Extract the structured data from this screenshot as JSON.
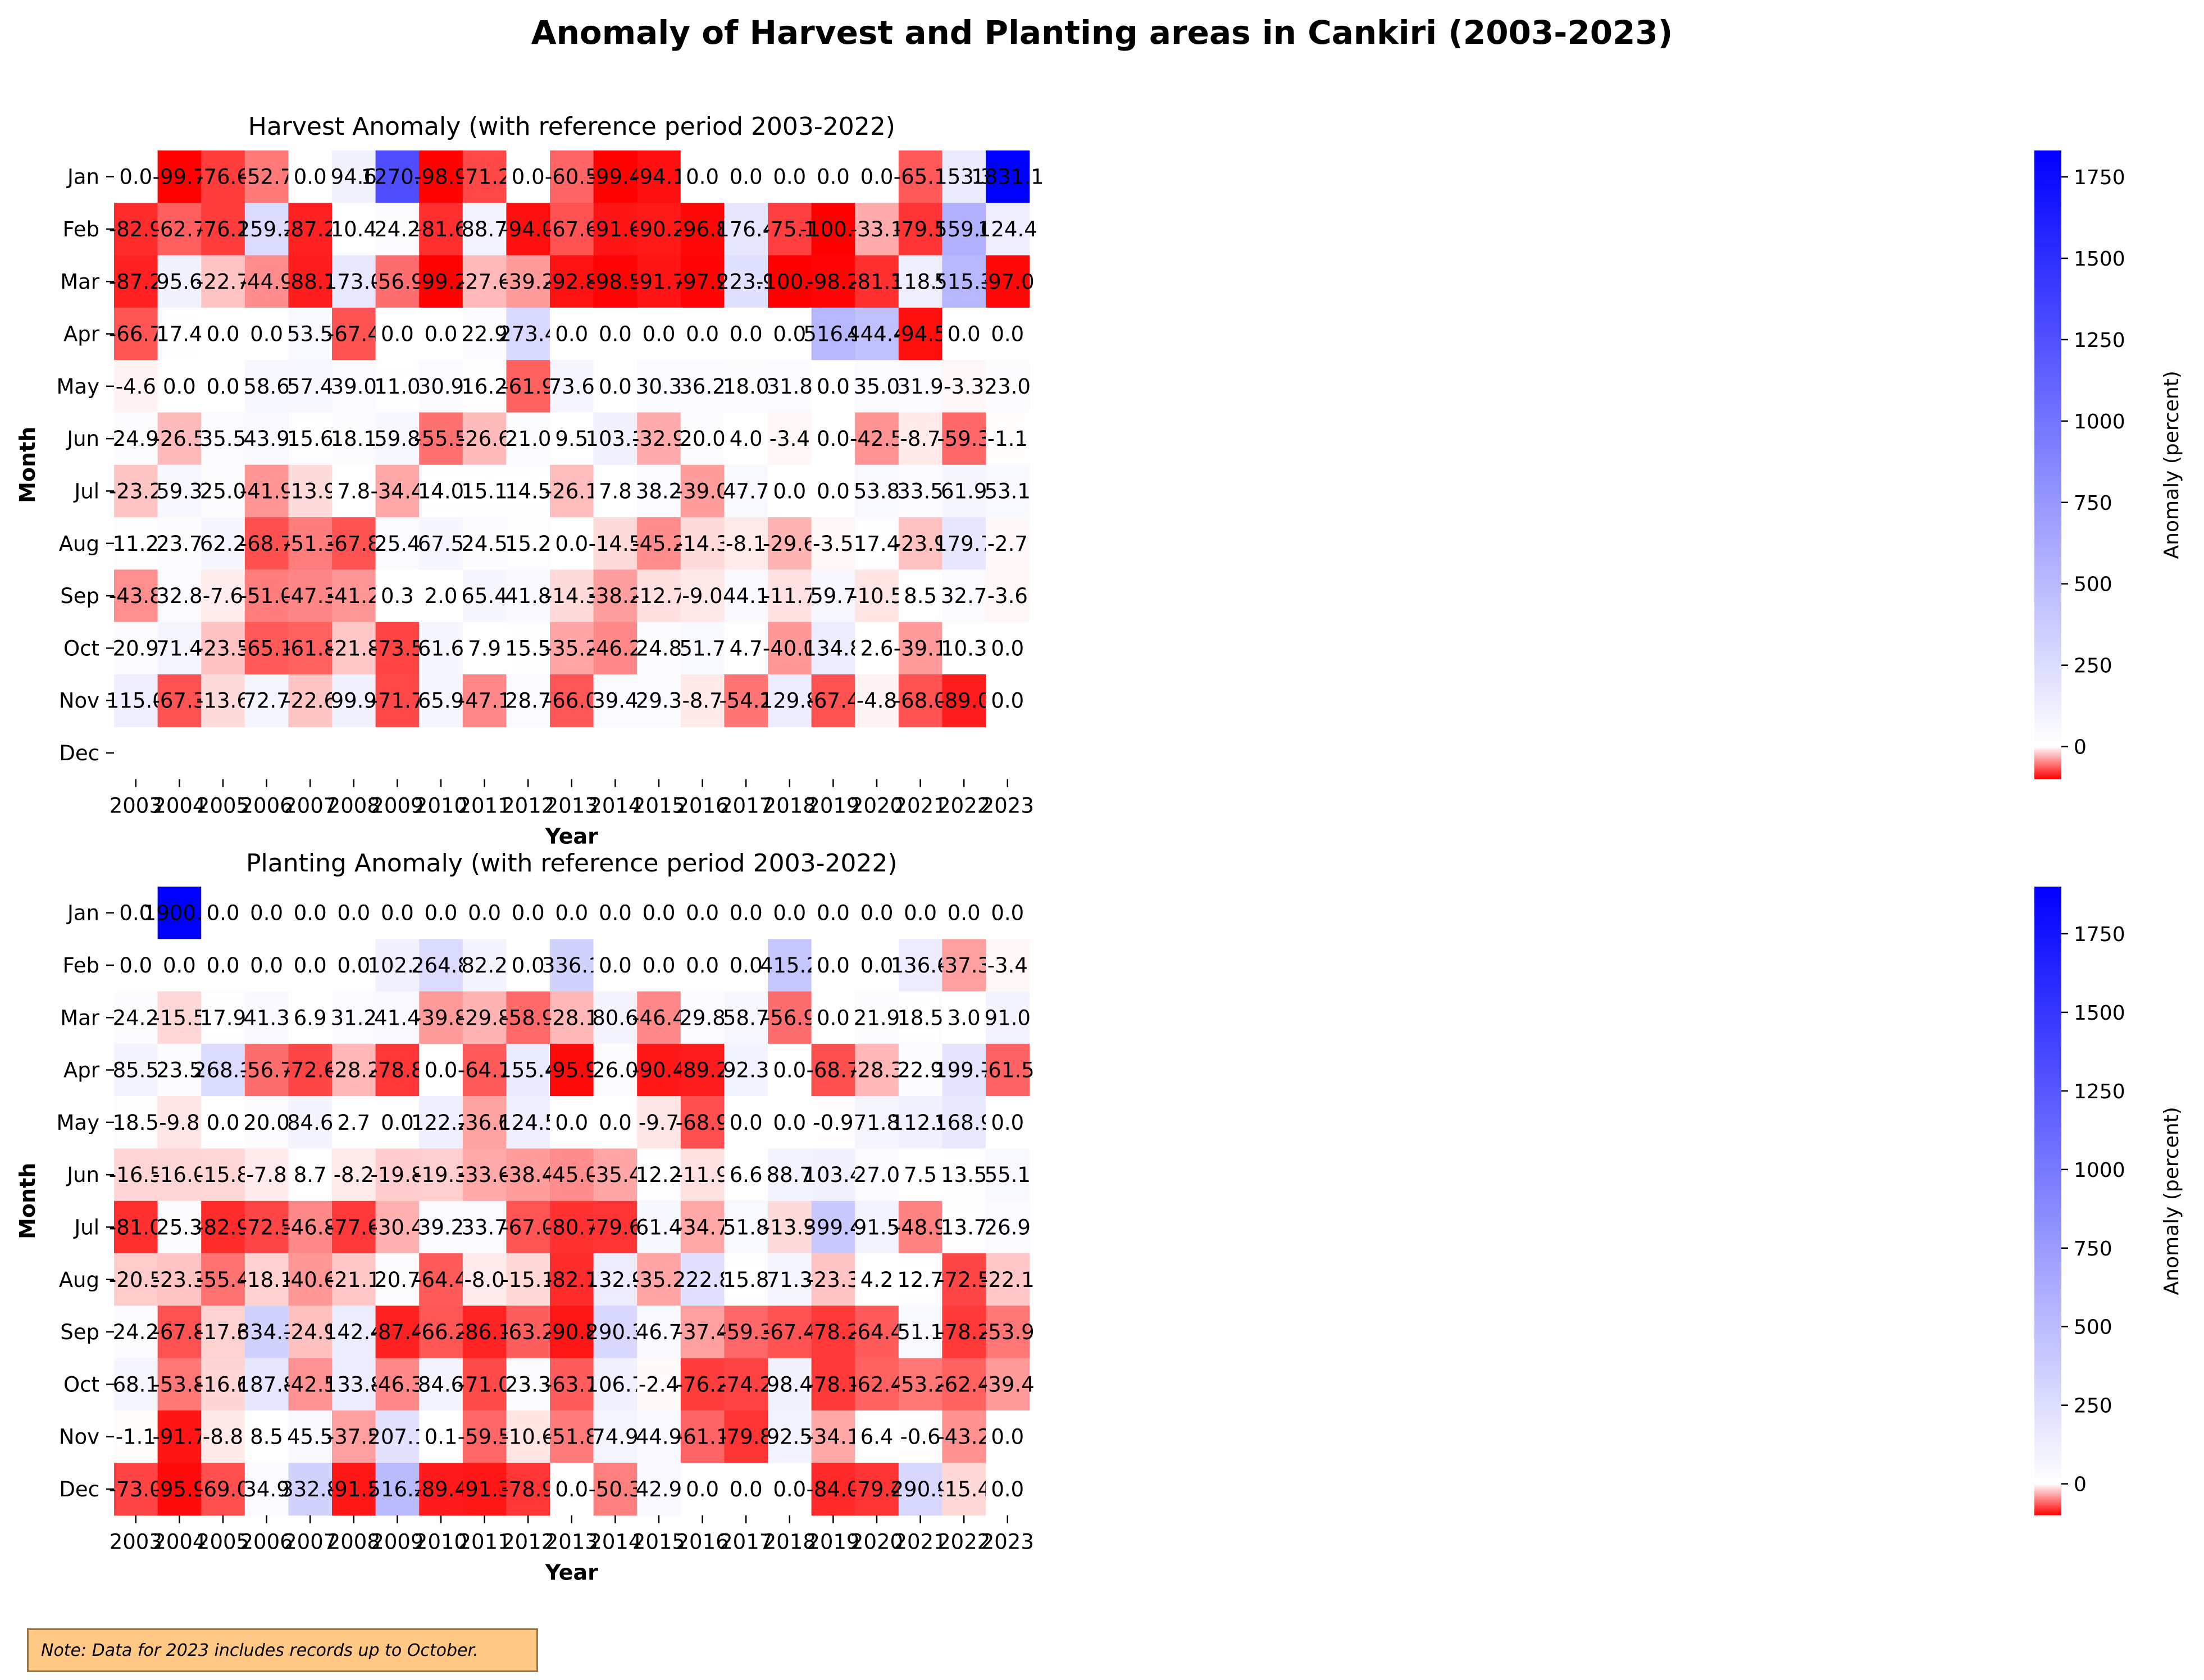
{
  "title": "Anomaly of Harvest and Planting areas in Cankiri (2003-2023)",
  "note": "Note: Data for 2023 includes records up to October.",
  "chart_data": [
    {
      "type": "heatmap",
      "title": "Harvest Anomaly (with reference period 2003-2022)",
      "xlabel": "Year",
      "ylabel": "Month",
      "colorbar_label": "Anomaly (percent)",
      "x": [
        "2003",
        "2004",
        "2005",
        "2006",
        "2007",
        "2008",
        "2009",
        "2010",
        "2011",
        "2012",
        "2013",
        "2014",
        "2015",
        "2016",
        "2017",
        "2018",
        "2019",
        "2020",
        "2021",
        "2022",
        "2023"
      ],
      "y": [
        "Jan",
        "Feb",
        "Mar",
        "Apr",
        "May",
        "Jun",
        "Jul",
        "Aug",
        "Sep",
        "Oct",
        "Nov",
        "Dec"
      ],
      "vmin": -100,
      "vmax": 1831.1,
      "colorbar_ticks": [
        "0",
        "250",
        "500",
        "750",
        "1000",
        "1250",
        "1500",
        "1750"
      ],
      "colors": {
        "negative": "#ff0000",
        "zero": "#ffffff",
        "positive": "#0000ff"
      },
      "values": [
        [
          0.0,
          -99.7,
          -76.6,
          -52.7,
          0.0,
          94.6,
          1270.4,
          -98.9,
          -71.2,
          0.0,
          -60.5,
          -99.4,
          -94.1,
          0.0,
          0.0,
          0.0,
          0.0,
          0.0,
          -65.1,
          153.3,
          1831.1
        ],
        [
          -82.9,
          -62.7,
          -76.1,
          259.2,
          -87.2,
          10.4,
          24.2,
          -81.6,
          88.7,
          -94.0,
          -67.6,
          -91.6,
          -90.2,
          -96.8,
          176.4,
          -75.1,
          -100.0,
          -33.1,
          -79.1,
          559.0,
          124.4
        ],
        [
          -87.2,
          95.6,
          -22.7,
          -44.9,
          -88.7,
          173.0,
          -56.9,
          -99.2,
          -27.6,
          -39.2,
          -92.8,
          -98.5,
          -91.7,
          -97.9,
          223.9,
          -100.0,
          -98.2,
          -81.3,
          118.9,
          515.3,
          -97.0
        ],
        [
          -66.7,
          17.4,
          0.0,
          0.0,
          53.5,
          -67.4,
          0.0,
          0.0,
          22.9,
          273.4,
          0.0,
          0.0,
          0.0,
          0.0,
          0.0,
          0.0,
          516.9,
          444.4,
          -94.5,
          0.0,
          0.0
        ],
        [
          -4.6,
          0.0,
          0.0,
          58.6,
          57.4,
          39.0,
          11.0,
          30.9,
          16.2,
          -61.9,
          73.6,
          0.0,
          30.3,
          36.2,
          18.0,
          31.8,
          0.0,
          35.0,
          31.9,
          -3.3,
          23.0
        ],
        [
          24.9,
          -26.5,
          35.5,
          43.9,
          15.6,
          18.1,
          59.8,
          -55.5,
          -26.6,
          21.0,
          9.5,
          103.1,
          -32.9,
          20.0,
          4.0,
          -3.4,
          0.0,
          -42.5,
          -8.7,
          -59.3,
          -1.1
        ],
        [
          -23.2,
          59.3,
          25.0,
          -41.9,
          -13.9,
          7.8,
          -34.4,
          14.0,
          15.1,
          14.5,
          -26.1,
          7.8,
          38.2,
          -39.0,
          47.7,
          0.0,
          0.0,
          53.8,
          33.5,
          61.9,
          53.1
        ],
        [
          11.2,
          23.7,
          62.2,
          -68.7,
          -51.3,
          -67.8,
          25.4,
          67.5,
          24.5,
          15.2,
          0.0,
          -14.5,
          -45.2,
          -14.3,
          -8.1,
          -29.6,
          -3.5,
          17.4,
          -23.9,
          179.7,
          -2.7
        ],
        [
          -43.8,
          32.8,
          -7.6,
          -51.0,
          -47.3,
          -41.2,
          0.3,
          2.0,
          65.4,
          41.8,
          -14.3,
          -38.2,
          -12.7,
          -9.0,
          44.1,
          -11.7,
          59.7,
          -10.5,
          8.5,
          32.7,
          -3.6
        ],
        [
          20.9,
          71.4,
          -23.5,
          -65.1,
          -61.8,
          -21.8,
          -73.5,
          61.6,
          7.9,
          15.5,
          -35.2,
          -46.2,
          24.8,
          51.7,
          4.7,
          -40.0,
          134.8,
          2.6,
          -39.1,
          10.3,
          0.0
        ],
        [
          115.0,
          -67.3,
          -13.6,
          72.7,
          -22.6,
          99.9,
          -71.7,
          65.9,
          -47.1,
          28.7,
          -66.0,
          39.4,
          29.3,
          -8.7,
          -54.2,
          129.8,
          -67.4,
          -4.8,
          -68.0,
          -89.0,
          0.0
        ],
        [
          null,
          null,
          null,
          null,
          null,
          null,
          null,
          null,
          null,
          null,
          null,
          null,
          null,
          null,
          null,
          null,
          null,
          null,
          null,
          null,
          null
        ]
      ]
    },
    {
      "type": "heatmap",
      "title": "Planting Anomaly (with reference period 2003-2022)",
      "xlabel": "Year",
      "ylabel": "Month",
      "colorbar_label": "Anomaly (percent)",
      "x": [
        "2003",
        "2004",
        "2005",
        "2006",
        "2007",
        "2008",
        "2009",
        "2010",
        "2011",
        "2012",
        "2013",
        "2014",
        "2015",
        "2016",
        "2017",
        "2018",
        "2019",
        "2020",
        "2021",
        "2022",
        "2023"
      ],
      "y": [
        "Jan",
        "Feb",
        "Mar",
        "Apr",
        "May",
        "Jun",
        "Jul",
        "Aug",
        "Sep",
        "Oct",
        "Nov",
        "Dec"
      ],
      "vmin": -100,
      "vmax": 1900.0,
      "colorbar_ticks": [
        "0",
        "250",
        "500",
        "750",
        "1000",
        "1250",
        "1500",
        "1750"
      ],
      "colors": {
        "negative": "#ff0000",
        "zero": "#ffffff",
        "positive": "#0000ff"
      },
      "values": [
        [
          0.0,
          1900.0,
          0.0,
          0.0,
          0.0,
          0.0,
          0.0,
          0.0,
          0.0,
          0.0,
          0.0,
          0.0,
          0.0,
          0.0,
          0.0,
          0.0,
          0.0,
          0.0,
          0.0,
          0.0,
          0.0
        ],
        [
          0.0,
          0.0,
          0.0,
          0.0,
          0.0,
          0.0,
          102.3,
          264.8,
          82.2,
          0.0,
          336.1,
          0.0,
          0.0,
          0.0,
          0.0,
          415.2,
          0.0,
          0.0,
          136.6,
          -37.3,
          -3.4
        ],
        [
          24.2,
          -15.5,
          17.9,
          41.3,
          6.9,
          31.2,
          41.4,
          -39.8,
          -29.8,
          -58.9,
          -28.1,
          80.6,
          -46.4,
          29.8,
          58.7,
          -56.9,
          0.0,
          21.9,
          18.5,
          3.0,
          91.0
        ],
        [
          85.5,
          23.5,
          268.1,
          -56.7,
          -72.6,
          -28.2,
          -78.8,
          0.0,
          -64.7,
          155.4,
          -95.9,
          26.0,
          -90.4,
          -89.2,
          92.3,
          0.0,
          -68.7,
          -28.3,
          22.9,
          199.7,
          -61.5
        ],
        [
          18.5,
          -9.8,
          0.0,
          20.0,
          84.6,
          2.7,
          0.0,
          122.2,
          -36.6,
          124.5,
          0.0,
          0.0,
          -9.7,
          -68.9,
          0.0,
          0.0,
          -0.9,
          71.8,
          112.9,
          168.9,
          0.0
        ],
        [
          -16.5,
          -16.0,
          -15.8,
          -7.8,
          8.7,
          -8.2,
          -19.8,
          -19.3,
          -33.6,
          -38.4,
          -45.0,
          -35.4,
          12.2,
          -11.9,
          6.6,
          88.7,
          103.4,
          27.0,
          7.5,
          13.5,
          55.1
        ],
        [
          -81.0,
          25.3,
          -82.9,
          -72.5,
          -46.8,
          -77.6,
          -30.4,
          39.2,
          33.7,
          -67.0,
          -80.7,
          -79.6,
          61.4,
          -34.7,
          51.8,
          -13.9,
          399.4,
          91.5,
          -48.9,
          13.7,
          26.9
        ],
        [
          -20.5,
          -23.3,
          -55.4,
          -18.1,
          -40.6,
          -21.1,
          20.7,
          -64.4,
          -8.0,
          -15.1,
          -82.7,
          132.9,
          -35.2,
          222.8,
          15.8,
          71.3,
          -23.3,
          4.2,
          12.7,
          -72.5,
          -22.1
        ],
        [
          24.2,
          -67.8,
          -17.6,
          334.1,
          -24.9,
          142.4,
          -87.4,
          -66.2,
          -86.1,
          -63.2,
          -90.8,
          290.3,
          46.7,
          -37.4,
          -59.3,
          -67.4,
          -78.2,
          -64.4,
          51.1,
          -78.2,
          -53.9
        ],
        [
          68.1,
          -53.8,
          -16.6,
          187.8,
          -42.5,
          133.8,
          -46.3,
          84.6,
          -71.0,
          23.3,
          -63.7,
          106.7,
          -2.4,
          -76.2,
          -74.2,
          98.4,
          -78.1,
          -62.4,
          -53.2,
          -62.4,
          -39.4
        ],
        [
          -1.1,
          -91.7,
          -8.8,
          8.5,
          45.5,
          -37.5,
          207.1,
          0.1,
          -59.5,
          -10.6,
          -51.8,
          74.9,
          44.9,
          -61.1,
          -79.8,
          92.5,
          -34.1,
          6.4,
          -0.6,
          -43.2,
          0.0
        ],
        [
          -73.0,
          -95.9,
          -69.0,
          34.9,
          332.8,
          -91.2,
          516.2,
          -89.4,
          -91.3,
          -78.9,
          0.0,
          -50.3,
          42.9,
          0.0,
          0.0,
          0.0,
          -84.0,
          -79.4,
          290.9,
          -15.4,
          0.0
        ]
      ]
    }
  ]
}
